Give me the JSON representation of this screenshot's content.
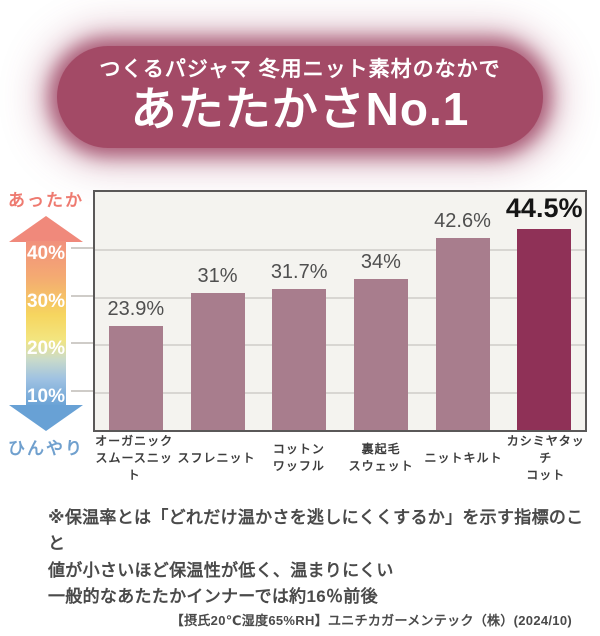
{
  "banner": {
    "subtitle": "つくるパジャマ 冬用ニット素材のなかで",
    "title": "あたたかさNo.1",
    "bg_color": "#a34a66"
  },
  "axis": {
    "warm_label": "あったか",
    "cool_label": "ひんやり",
    "warm_color": "#ee7a70",
    "cool_color": "#70a0ce",
    "tick_labels": [
      "40%",
      "30%",
      "20%",
      "10%"
    ],
    "tick_percents": [
      40,
      30,
      20,
      10
    ]
  },
  "chart_data": {
    "type": "bar",
    "categories": [
      [
        "オーガニック",
        "スムースニット"
      ],
      [
        "スフレニット"
      ],
      [
        "コットン",
        "ワッフル"
      ],
      [
        "裏起毛",
        "スウェット"
      ],
      [
        "ニットキルト"
      ],
      [
        "カシミヤタッチ",
        "コット"
      ]
    ],
    "values": [
      23.9,
      31,
      31.7,
      34,
      42.6,
      44.5
    ],
    "value_labels": [
      "23.9%",
      "31%",
      "31.7%",
      "34%",
      "42.6%",
      "44.5%"
    ],
    "highlight_index": 5,
    "bar_color": "#a87d8d",
    "highlight_color": "#8f3157",
    "plot_background": "#f4f3ef",
    "gridline_percents": [
      40,
      30,
      20,
      10
    ],
    "ylim": [
      2,
      52
    ],
    "grid": "horizontal",
    "legend": "none"
  },
  "footnote": {
    "lines": [
      "※保温率とは「どれだけ温かさを逃しにくくするか」を示す指標のこと",
      "値が小さいほど保温性が低く、温まりにくい",
      "一般的なあたたかインナーでは約16％前後"
    ]
  },
  "source": "【摂氏20℃湿度65%RH】ユニチカガーメンテック（株）(2024/10)"
}
